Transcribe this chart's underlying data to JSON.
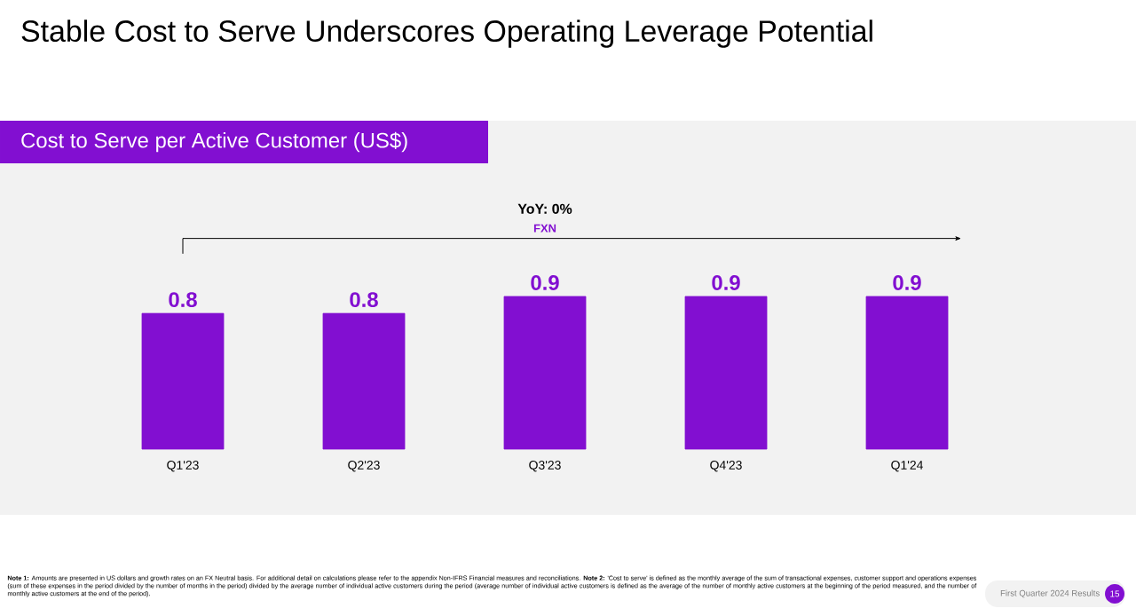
{
  "chart_data": {
    "type": "bar",
    "title": "Stable Cost to Serve Underscores Operating Leverage Potential",
    "subtitle": "Cost to Serve per Active Customer (US$)",
    "categories": [
      "Q1'23",
      "Q2'23",
      "Q3'23",
      "Q4'23",
      "Q1'24"
    ],
    "values": [
      0.8,
      0.8,
      0.9,
      0.9,
      0.9
    ],
    "color": "#820fd1",
    "data_labels": true,
    "annotations": [
      "YoY: 0%",
      "FXN",
      "**Note 1:** Amounts are presented in US dollars and growth rates on an FX Neutral basis. For additional detail on calculations please refer to the appendix Non-IFRS Financial measures and reconciliations. **Note 2:** 'Cost to serve' is defined as the monthly average of the sum of transactional expenses, customer support and operations expenses (sum of these expenses in the period divided by the number of months in the period) divided by the average number of individual active customers during the period (average number of individual active customers is defined as the average of the number of monthly active customers at the beginning of the period measured, and the number of monthly active customers at the end of the period).",
      "First Quarter 2024 Results",
      "15"
    ]
  }
}
